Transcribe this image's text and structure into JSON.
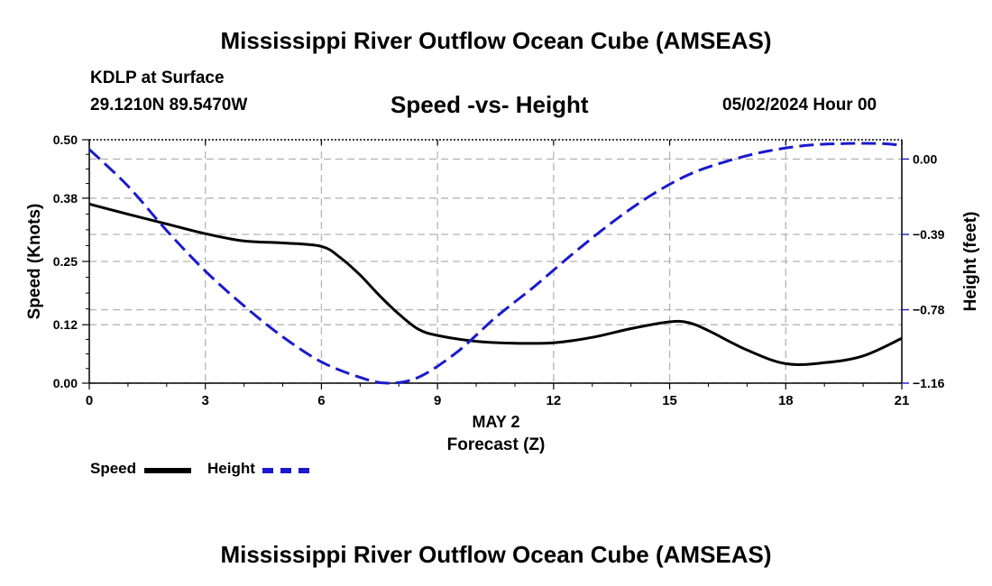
{
  "header": {
    "title": "Mississippi River Outflow Ocean Cube (AMSEAS)",
    "station": "KDLP at Surface",
    "coords": "29.1210N  89.5470W",
    "subtitle": "Speed -vs- Height",
    "datetime": "05/02/2024 Hour 00"
  },
  "footer": {
    "title": "Mississippi River Outflow Ocean Cube (AMSEAS)"
  },
  "legend": {
    "speed_label": "Speed",
    "height_label": "Height"
  },
  "colors": {
    "speed": "#000000",
    "height": "#1a1acc",
    "grid": "#b4b4b4"
  },
  "chart_data": {
    "type": "line",
    "title": "Speed -vs- Height",
    "xlabel": "Forecast (Z)",
    "xlabel_date": "MAY 2",
    "ylabel": "Speed (Knots)",
    "y2label": "Height (feet)",
    "xlim": [
      0,
      21
    ],
    "ylim": [
      0,
      0.5
    ],
    "y2lim": [
      -1.16,
      0.1
    ],
    "x_ticks": [
      0,
      3,
      6,
      9,
      12,
      15,
      18,
      21
    ],
    "y_ticks": [
      0.0,
      0.12,
      0.25,
      0.38,
      0.5
    ],
    "y_tick_labels": [
      "0.00",
      "0.12",
      "0.25",
      "0.38",
      "0.50"
    ],
    "y2_ticks": [
      0.0,
      -0.39,
      -0.78,
      -1.16
    ],
    "y2_tick_labels": [
      "0.00",
      "−0.39",
      "−0.78",
      "−1.16"
    ],
    "grid": true,
    "series": [
      {
        "name": "Speed",
        "axis": "left",
        "x": [
          0,
          1,
          2,
          3,
          4,
          5,
          6,
          6.5,
          7,
          7.5,
          8,
          8.5,
          9,
          10,
          11,
          12,
          13,
          14,
          15,
          15.5,
          16,
          17,
          18,
          19,
          20,
          21
        ],
        "values": [
          0.368,
          0.347,
          0.327,
          0.307,
          0.292,
          0.288,
          0.281,
          0.257,
          0.222,
          0.18,
          0.142,
          0.111,
          0.098,
          0.086,
          0.082,
          0.083,
          0.094,
          0.112,
          0.126,
          0.124,
          0.108,
          0.068,
          0.04,
          0.042,
          0.056,
          0.092
        ]
      },
      {
        "name": "Height",
        "axis": "right",
        "x": [
          0,
          1,
          2,
          3,
          4,
          5,
          6,
          7,
          7.7,
          8.5,
          9.5,
          10.5,
          11.5,
          12.5,
          13.5,
          14.5,
          15.5,
          16.5,
          17.5,
          18.5,
          19.5,
          20.5,
          21
        ],
        "values": [
          0.05,
          -0.14,
          -0.37,
          -0.58,
          -0.76,
          -0.92,
          -1.05,
          -1.13,
          -1.16,
          -1.13,
          -1.0,
          -0.82,
          -0.66,
          -0.49,
          -0.33,
          -0.19,
          -0.08,
          -0.01,
          0.04,
          0.07,
          0.08,
          0.08,
          0.07
        ]
      }
    ]
  }
}
